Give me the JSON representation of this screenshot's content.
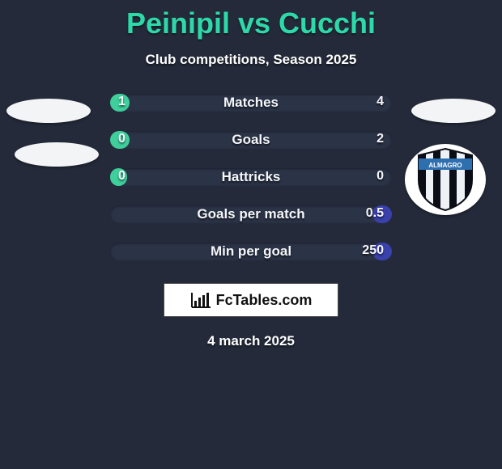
{
  "title": "Peinipil vs Cucchi",
  "subtitle": "Club competitions, Season 2025",
  "date": "4 march 2025",
  "logo_text": "FcTables.com",
  "colors": {
    "background": "#242a3a",
    "title": "#2ed9a9",
    "text": "#ffffff",
    "bar_bg": "#2b3347",
    "left_fill": "#3ecf9b",
    "right_fill": "#3a41ab",
    "logo_bg": "#ffffff",
    "logo_text": "#111111",
    "ellipse": "#f3f4f5"
  },
  "crest": {
    "label": "ALMAGRO",
    "stripe_color": "#0b0d16",
    "stripe_alt": "#eef2f7",
    "band_color": "#2e6fb0"
  },
  "bars": [
    {
      "label": "Matches",
      "left_val": "1",
      "right_val": "4",
      "left_pct": 7,
      "right_pct": 0
    },
    {
      "label": "Goals",
      "left_val": "0",
      "right_val": "2",
      "left_pct": 7,
      "right_pct": 0
    },
    {
      "label": "Hattricks",
      "left_val": "0",
      "right_val": "0",
      "left_pct": 6,
      "right_pct": 0
    },
    {
      "label": "Goals per match",
      "left_val": "",
      "right_val": "0.5",
      "left_pct": 0,
      "right_pct": 7
    },
    {
      "label": "Min per goal",
      "left_val": "",
      "right_val": "250",
      "left_pct": 0,
      "right_pct": 7
    }
  ]
}
